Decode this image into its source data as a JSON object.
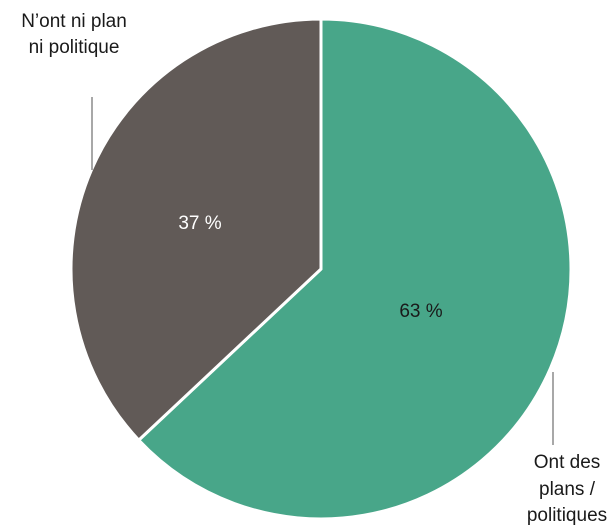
{
  "chart_data": {
    "type": "pie",
    "categories": [
      "Ont des plans / politiques",
      "N’ont ni plan ni politique"
    ],
    "values": [
      63,
      37
    ],
    "slices": [
      {
        "category": "Ont des plans / politiques",
        "value": 63,
        "value_label": "63 %",
        "callout_lines": [
          "Ont des",
          "plans /",
          "politiques"
        ],
        "color": "#48a689",
        "label_color": "#1a1a1a"
      },
      {
        "category": "N’ont ni plan ni politique",
        "value": 37,
        "value_label": "37 %",
        "callout_lines": [
          "N’ont ni plan",
          "ni politique"
        ],
        "color": "#615a57",
        "label_color": "#ffffff"
      }
    ],
    "start": "12 o'clock",
    "direction": "clockwise",
    "legend": "none"
  }
}
